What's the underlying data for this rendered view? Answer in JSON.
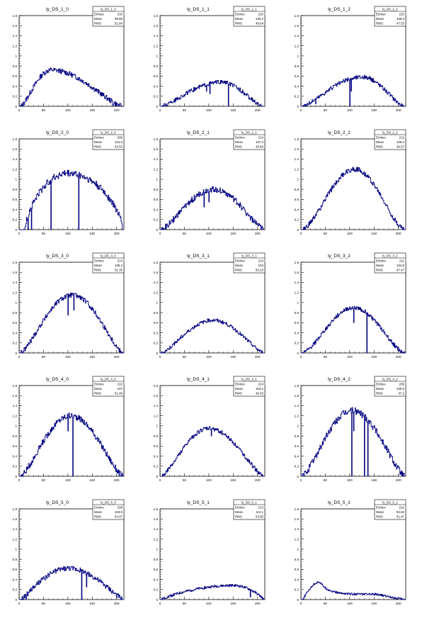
{
  "chart_data": [
    {
      "type": "histogram",
      "title": "ly_DS_1_0",
      "stats": {
        "name": "ly_DS_1_0",
        "entries": "210",
        "mean": "99.85",
        "rms": "51.84"
      },
      "xlim": [
        0,
        215
      ],
      "ylim": [
        0,
        1.8
      ],
      "xticks": [
        0,
        50,
        100,
        150,
        200
      ],
      "yticks": [
        0,
        0.2,
        0.4,
        0.6,
        0.8,
        1,
        1.2,
        1.4,
        1.6,
        1.8
      ],
      "shape": {
        "start": 3,
        "end": 210,
        "peak": 0.72,
        "peak_x": 65,
        "power": 1.3,
        "noise": 0.05
      },
      "dips": [
        [
          192,
          0.0
        ]
      ]
    },
    {
      "type": "histogram",
      "title": "ly_DS_1_1",
      "stats": {
        "name": "ly_DS_1_1",
        "entries": "210",
        "mean": "106.2",
        "rms": "49.64"
      },
      "xlim": [
        0,
        215
      ],
      "ylim": [
        0,
        1.8
      ],
      "xticks": [
        0,
        50,
        100,
        150,
        200
      ],
      "yticks": [
        0,
        0.2,
        0.4,
        0.6,
        0.8,
        1,
        1.2,
        1.4,
        1.6,
        1.8
      ],
      "shape": {
        "start": 3,
        "end": 208,
        "peak": 0.48,
        "peak_x": 125,
        "power": 1.3,
        "noise": 0.04
      },
      "dips": [
        [
          22,
          0.1
        ],
        [
          95,
          0.3
        ],
        [
          102,
          0.25
        ],
        [
          140,
          0.0
        ]
      ]
    },
    {
      "type": "histogram",
      "title": "ly_DS_1_2",
      "stats": {
        "name": "ly_DS_1_2",
        "entries": "210",
        "mean": "109.3",
        "rms": "47.53"
      },
      "xlim": [
        0,
        215
      ],
      "ylim": [
        0,
        1.8
      ],
      "xticks": [
        0,
        50,
        100,
        150,
        200
      ],
      "yticks": [
        0,
        0.2,
        0.4,
        0.6,
        0.8,
        1,
        1.2,
        1.4,
        1.6,
        1.8
      ],
      "shape": {
        "start": 3,
        "end": 210,
        "peak": 0.58,
        "peak_x": 125,
        "power": 1.3,
        "noise": 0.04
      },
      "dips": [
        [
          30,
          0.05
        ],
        [
          100,
          0.0
        ],
        [
          103,
          0.3
        ]
      ]
    },
    {
      "type": "histogram",
      "title": "ly_DS_2_0",
      "stats": {
        "name": "ly_DS_2_0",
        "entries": "209",
        "mean": "101.6",
        "rms": "53.53"
      },
      "xlim": [
        0,
        215
      ],
      "ylim": [
        0,
        1.8
      ],
      "xticks": [
        0,
        50,
        100,
        150,
        200
      ],
      "yticks": [
        0,
        0.2,
        0.4,
        0.6,
        0.8,
        1,
        1.2,
        1.4,
        1.6,
        1.8
      ],
      "shape": {
        "start": 12,
        "end": 212,
        "peak": 1.12,
        "peak_x": 100,
        "power": 0.6,
        "noise": 0.07
      },
      "dips": [
        [
          18,
          0.0
        ],
        [
          25,
          0.0
        ],
        [
          65,
          0.0
        ],
        [
          122,
          0.0
        ]
      ]
    },
    {
      "type": "histogram",
      "title": "ly_DS_2_1",
      "stats": {
        "name": "ly_DS_2_1",
        "entries": "214",
        "mean": "107.3",
        "rms": "49.66"
      },
      "xlim": [
        0,
        215
      ],
      "ylim": [
        0,
        1.8
      ],
      "xticks": [
        0,
        50,
        100,
        150,
        200
      ],
      "yticks": [
        0,
        0.2,
        0.4,
        0.6,
        0.8,
        1,
        1.2,
        1.4,
        1.6,
        1.8
      ],
      "shape": {
        "start": 3,
        "end": 212,
        "peak": 0.8,
        "peak_x": 110,
        "power": 1.3,
        "noise": 0.06
      },
      "dips": [
        [
          90,
          0.45
        ],
        [
          100,
          0.55
        ]
      ]
    },
    {
      "type": "histogram",
      "title": "ly_DS_2_2",
      "stats": {
        "name": "ly_DS_2_2",
        "entries": "212",
        "mean": "108.2",
        "rms": "46.57"
      },
      "xlim": [
        0,
        215
      ],
      "ylim": [
        0,
        1.8
      ],
      "xticks": [
        0,
        50,
        100,
        150,
        200
      ],
      "yticks": [
        0,
        0.2,
        0.4,
        0.6,
        0.8,
        1,
        1.2,
        1.4,
        1.6,
        1.8
      ],
      "shape": {
        "start": 3,
        "end": 212,
        "peak": 1.2,
        "peak_x": 110,
        "power": 1.5,
        "noise": 0.05
      },
      "dips": []
    },
    {
      "type": "histogram",
      "title": "ly_DS_3_0",
      "stats": {
        "name": "ly_DS_3_0",
        "entries": "214",
        "mean": "105.2",
        "rms": "51.35"
      },
      "xlim": [
        0,
        215
      ],
      "ylim": [
        0,
        1.8
      ],
      "xticks": [
        0,
        50,
        100,
        150,
        200
      ],
      "yticks": [
        0,
        0.2,
        0.4,
        0.6,
        0.8,
        1,
        1.2,
        1.4,
        1.6,
        1.8
      ],
      "shape": {
        "start": 3,
        "end": 212,
        "peak": 1.15,
        "peak_x": 108,
        "power": 1.3,
        "noise": 0.05
      },
      "dips": [
        [
          100,
          0.75
        ],
        [
          112,
          0.85
        ]
      ]
    },
    {
      "type": "histogram",
      "title": "ly_DS_3_1",
      "stats": {
        "name": "ly_DS_3_1",
        "entries": "214",
        "mean": "104",
        "rms": "50.23"
      },
      "xlim": [
        0,
        215
      ],
      "ylim": [
        0,
        1.8
      ],
      "xticks": [
        0,
        50,
        100,
        150,
        200
      ],
      "yticks": [
        0,
        0.2,
        0.4,
        0.6,
        0.8,
        1,
        1.2,
        1.4,
        1.6,
        1.8
      ],
      "shape": {
        "start": 3,
        "end": 212,
        "peak": 0.65,
        "peak_x": 108,
        "power": 1.3,
        "noise": 0.035
      },
      "dips": []
    },
    {
      "type": "histogram",
      "title": "ly_DS_3_2",
      "stats": {
        "name": "ly_DS_3_2",
        "entries": "211",
        "mean": "104.8",
        "rms": "47.47"
      },
      "xlim": [
        0,
        215
      ],
      "ylim": [
        0,
        1.8
      ],
      "xticks": [
        0,
        50,
        100,
        150,
        200
      ],
      "yticks": [
        0,
        0.2,
        0.4,
        0.6,
        0.8,
        1,
        1.2,
        1.4,
        1.6,
        1.8
      ],
      "shape": {
        "start": 3,
        "end": 212,
        "peak": 0.9,
        "peak_x": 108,
        "power": 1.5,
        "noise": 0.04
      },
      "dips": [
        [
          108,
          0.6
        ],
        [
          135,
          0.0
        ]
      ]
    },
    {
      "type": "histogram",
      "title": "ly_DS_4_0",
      "stats": {
        "name": "ly_DS_4_0",
        "entries": "213",
        "mean": "107",
        "rms": "51.49"
      },
      "xlim": [
        0,
        215
      ],
      "ylim": [
        0,
        1.8
      ],
      "xticks": [
        0,
        50,
        100,
        150,
        200
      ],
      "yticks": [
        0,
        0.2,
        0.4,
        0.6,
        0.8,
        1,
        1.2,
        1.4,
        1.6,
        1.8
      ],
      "shape": {
        "start": 3,
        "end": 212,
        "peak": 1.2,
        "peak_x": 105,
        "power": 1.3,
        "noise": 0.06
      },
      "dips": [
        [
          100,
          0.9
        ],
        [
          110,
          0.0
        ]
      ]
    },
    {
      "type": "histogram",
      "title": "ly_DS_4_1",
      "stats": {
        "name": "ly_DS_4_1",
        "entries": "214",
        "mean": "103.2",
        "rms": "49.33"
      },
      "xlim": [
        0,
        215
      ],
      "ylim": [
        0,
        1.8
      ],
      "xticks": [
        0,
        50,
        100,
        150,
        200
      ],
      "yticks": [
        0,
        0.2,
        0.4,
        0.6,
        0.8,
        1,
        1.2,
        1.4,
        1.6,
        1.8
      ],
      "shape": {
        "start": 3,
        "end": 212,
        "peak": 0.95,
        "peak_x": 100,
        "power": 1.3,
        "noise": 0.04
      },
      "dips": [
        [
          105,
          0.8
        ]
      ]
    },
    {
      "type": "histogram",
      "title": "ly_DS_4_2",
      "stats": {
        "name": "ly_DS_4_2",
        "entries": "209",
        "mean": "100.9",
        "rms": "47.2"
      },
      "xlim": [
        0,
        215
      ],
      "ylim": [
        0,
        1.8
      ],
      "xticks": [
        0,
        50,
        100,
        150,
        200
      ],
      "yticks": [
        0,
        0.2,
        0.4,
        0.6,
        0.8,
        1,
        1.2,
        1.4,
        1.6,
        1.8
      ],
      "shape": {
        "start": 3,
        "end": 212,
        "peak": 1.3,
        "peak_x": 105,
        "power": 1.3,
        "noise": 0.07
      },
      "dips": [
        [
          104,
          0.0
        ],
        [
          108,
          0.9
        ],
        [
          130,
          0.0
        ],
        [
          137,
          0.0
        ]
      ]
    },
    {
      "type": "histogram",
      "title": "ly_DS_5_0",
      "stats": {
        "name": "ly_DS_5_0",
        "entries": "208",
        "mean": "103.9",
        "rms": "54.07"
      },
      "xlim": [
        0,
        215
      ],
      "ylim": [
        0,
        1.8
      ],
      "xticks": [
        0,
        50,
        100,
        150,
        200
      ],
      "yticks": [
        0,
        0.2,
        0.4,
        0.6,
        0.8,
        1,
        1.2,
        1.4,
        1.6,
        1.8
      ],
      "shape": {
        "start": 3,
        "end": 212,
        "peak": 0.62,
        "peak_x": 100,
        "power": 1.1,
        "noise": 0.05
      },
      "dips": [
        [
          8,
          0.0
        ],
        [
          14,
          0.0
        ],
        [
          19,
          0.15
        ],
        [
          128,
          0.0
        ],
        [
          138,
          0.25
        ]
      ]
    },
    {
      "type": "histogram",
      "title": "ly_DS_5_1",
      "stats": {
        "name": "ly_DS_5_1",
        "entries": "213",
        "mean": "112.1",
        "rms": "53.85"
      },
      "xlim": [
        0,
        215
      ],
      "ylim": [
        0,
        1.8
      ],
      "xticks": [
        0,
        50,
        100,
        150,
        200
      ],
      "yticks": [
        0,
        0.2,
        0.4,
        0.6,
        0.8,
        1,
        1.2,
        1.4,
        1.6,
        1.8
      ],
      "shape": {
        "start": 3,
        "end": 212,
        "peak": 0.28,
        "peak_x": 150,
        "power": 0.8,
        "noise": 0.025
      },
      "dips": [
        [
          185,
          0.05
        ]
      ]
    },
    {
      "type": "histogram",
      "title": "ly_DS_5_2",
      "stats": {
        "name": "ly_DS_5_2",
        "entries": "212",
        "mean": "84.62",
        "rms": "51.47"
      },
      "xlim": [
        0,
        215
      ],
      "ylim": [
        0,
        1.8
      ],
      "xticks": [
        0,
        50,
        100,
        150,
        200
      ],
      "yticks": [
        0,
        0.2,
        0.4,
        0.6,
        0.8,
        1,
        1.2,
        1.4,
        1.6,
        1.8
      ],
      "shape": {
        "start": 3,
        "end": 212,
        "peak": 0.35,
        "peak_x": 38,
        "power": 1.0,
        "noise": 0.02,
        "tail": true
      },
      "dips": []
    }
  ],
  "stats_labels": {
    "entries": "Entries",
    "mean": "Mean",
    "rms": "RMS"
  },
  "colors": {
    "line": "#000080",
    "frame": "#000000",
    "background": "#ffffff"
  }
}
